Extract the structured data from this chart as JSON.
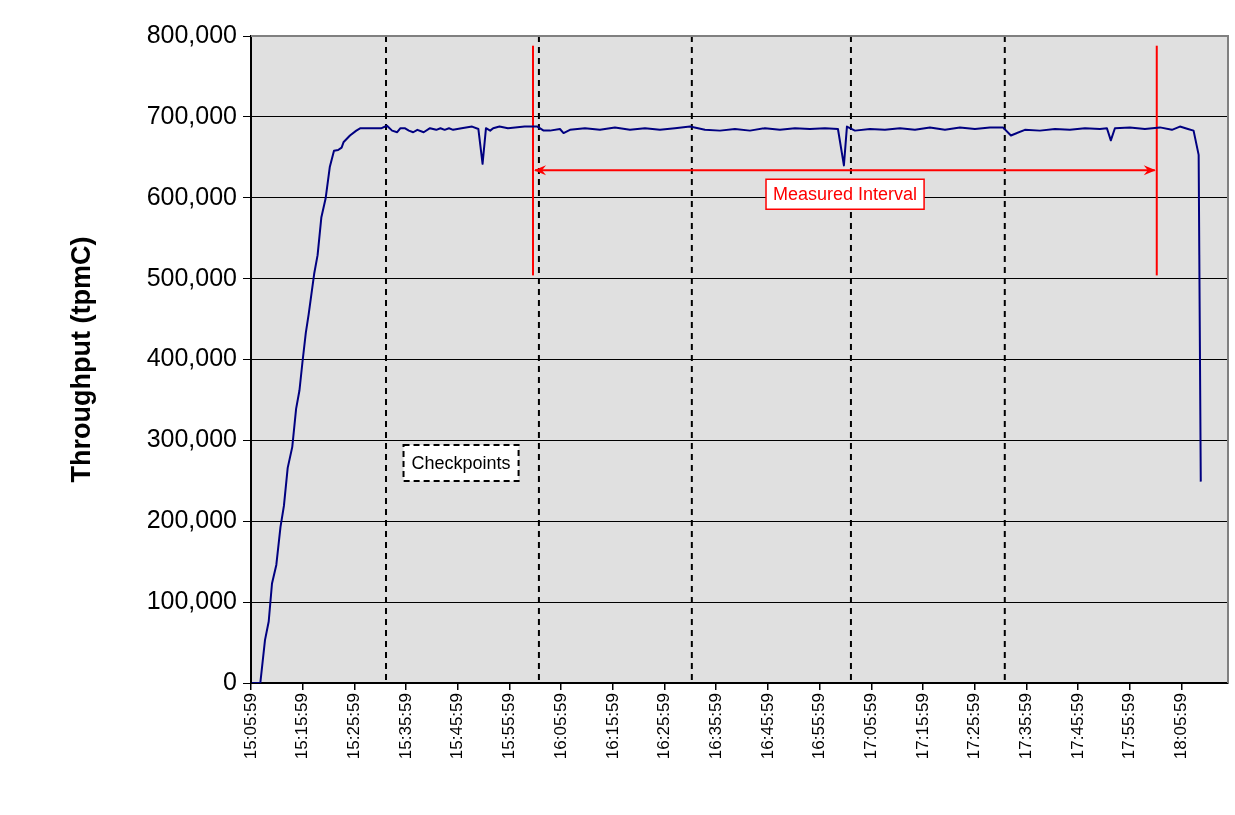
{
  "chart_data": {
    "type": "line",
    "ylabel": "Throughput (tpmC)",
    "x": [
      15.1026,
      15.1297,
      15.1448,
      15.1568,
      15.1674,
      15.1813,
      15.1948,
      15.2058,
      15.218,
      15.2328,
      15.2451,
      15.256,
      15.2654,
      15.2764,
      15.2857,
      15.3034,
      15.3144,
      15.3266,
      15.3402,
      15.3537,
      15.3673,
      15.3808,
      15.3918,
      15.3985,
      15.4188,
      15.4392,
      15.4527,
      15.473,
      15.5004,
      15.5207,
      15.5381,
      15.5546,
      15.571,
      15.5816,
      15.5952,
      15.6087,
      15.6226,
      15.6361,
      15.6564,
      15.6768,
      15.697,
      15.7106,
      15.7241,
      15.738,
      15.7515,
      15.7786,
      15.8125,
      15.8328,
      15.8463,
      15.8573,
      15.8708,
      15.8805,
      15.9008,
      15.9282,
      15.982,
      16.023,
      16.0433,
      16.0636,
      16.0958,
      16.1074,
      16.1281,
      16.1764,
      16.2248,
      16.2731,
      16.3215,
      16.3699,
      16.4182,
      16.4666,
      16.515,
      16.5633,
      16.6117,
      16.66,
      16.7084,
      16.7567,
      16.8051,
      16.8535,
      16.9018,
      16.9502,
      16.9921,
      17.0113,
      17.0211,
      17.0469,
      17.0952,
      17.1436,
      17.192,
      17.2403,
      17.2887,
      17.337,
      17.3854,
      17.4338,
      17.4821,
      17.524,
      17.5498,
      17.5949,
      17.6433,
      17.6917,
      17.74,
      17.7884,
      17.8368,
      17.8593,
      17.8719,
      17.8851,
      17.9335,
      17.9818,
      18.0302,
      18.0689,
      18.0947,
      18.1205,
      18.1387,
      18.1551,
      18.1619
    ],
    "series": [
      {
        "color": "#000080",
        "values": [
          0,
          0,
          53000,
          76000,
          123000,
          146000,
          193000,
          219000,
          266000,
          292000,
          339000,
          362000,
          396000,
          433000,
          456000,
          506000,
          529000,
          576000,
          599000,
          638000,
          658000,
          659000,
          662000,
          669000,
          677000,
          683000,
          686000,
          686000,
          686000,
          686000,
          689000,
          683000,
          681000,
          686000,
          686000,
          683000,
          681000,
          684000,
          681000,
          686000,
          684000,
          686000,
          684000,
          686000,
          684000,
          686000,
          688000,
          685000,
          642000,
          686000,
          683000,
          686000,
          688000,
          686000,
          688000,
          688000,
          683000,
          683000,
          685000,
          680000,
          684000,
          686000,
          684000,
          687000,
          684000,
          686000,
          684000,
          686000,
          688000,
          684000,
          683000,
          685000,
          683000,
          686000,
          684000,
          686000,
          685000,
          686000,
          685000,
          640000,
          688000,
          683000,
          685000,
          684000,
          686000,
          684000,
          687000,
          684000,
          687000,
          685000,
          687000,
          687000,
          677000,
          684000,
          683000,
          685000,
          684000,
          686000,
          685000,
          686000,
          671000,
          686000,
          687000,
          685000,
          687000,
          684000,
          688000,
          685000,
          683000,
          653000,
          249000
        ]
      }
    ],
    "xlim": [
      15.0997,
      18.2497
    ],
    "xticks": [
      {
        "value": 15.0997,
        "label": "15:05:59"
      },
      {
        "value": 15.2664,
        "label": "15:15:59"
      },
      {
        "value": 15.4331,
        "label": "15:25:59"
      },
      {
        "value": 15.5997,
        "label": "15:35:59"
      },
      {
        "value": 15.7664,
        "label": "15:45:59"
      },
      {
        "value": 15.9331,
        "label": "15:55:59"
      },
      {
        "value": 16.0997,
        "label": "16:05:59"
      },
      {
        "value": 16.2664,
        "label": "16:15:59"
      },
      {
        "value": 16.4331,
        "label": "16:25:59"
      },
      {
        "value": 16.5997,
        "label": "16:35:59"
      },
      {
        "value": 16.7664,
        "label": "16:45:59"
      },
      {
        "value": 16.9331,
        "label": "16:55:59"
      },
      {
        "value": 17.0997,
        "label": "17:05:59"
      },
      {
        "value": 17.2664,
        "label": "17:15:59"
      },
      {
        "value": 17.4331,
        "label": "17:25:59"
      },
      {
        "value": 17.5997,
        "label": "17:35:59"
      },
      {
        "value": 17.7664,
        "label": "17:45:59"
      },
      {
        "value": 17.9331,
        "label": "17:55:59"
      },
      {
        "value": 18.0997,
        "label": "18:05:59"
      }
    ],
    "ylim": [
      0,
      800000
    ],
    "yticks": [
      0,
      {
        "value": 100000,
        "label": "100,000"
      },
      {
        "value": 200000,
        "label": "200,000"
      },
      {
        "value": 300000,
        "label": "300,000"
      },
      {
        "value": 400000,
        "label": "400,000"
      },
      {
        "value": 500000,
        "label": "500,000"
      },
      {
        "value": 600000,
        "label": "600,000"
      },
      {
        "value": 700000,
        "label": "700,000"
      },
      {
        "value": 800000,
        "label": "800,000"
      }
    ],
    "grid": "y",
    "legend": false,
    "marker": "none",
    "line_style": "solid",
    "ref_lines": [
      {
        "axis": "x",
        "value": 15.535,
        "color": "#000000",
        "line_style": "dashed"
      },
      {
        "axis": "x",
        "value": 16.028,
        "color": "#000000",
        "line_style": "dashed"
      },
      {
        "axis": "x",
        "value": 16.521,
        "color": "#000000",
        "line_style": "dashed"
      },
      {
        "axis": "x",
        "value": 17.034,
        "color": "#000000",
        "line_style": "dashed"
      },
      {
        "axis": "x",
        "value": 17.53,
        "color": "#000000",
        "line_style": "dashed"
      },
      {
        "axis": "x",
        "value": 16.009,
        "color": "#ff0000",
        "line_style": "solid"
      },
      {
        "axis": "x",
        "value": 18.02,
        "color": "#ff0000",
        "line_style": "solid"
      }
    ],
    "annotations": [
      "Checkpoints",
      {
        "text": "Measured Interval",
        "x": 17.015,
        "y": 634000
      }
    ]
  }
}
